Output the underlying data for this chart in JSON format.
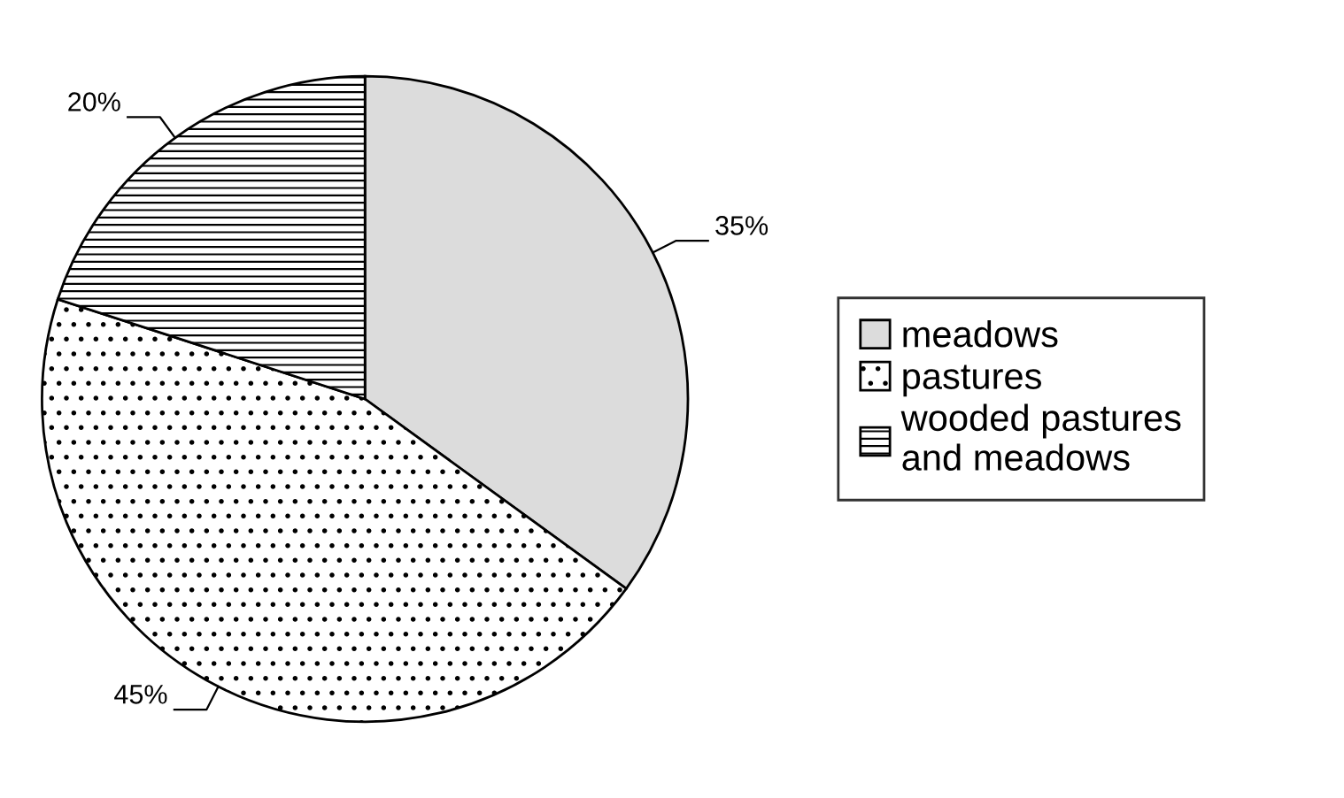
{
  "chart_data": {
    "type": "pie",
    "categories": [
      "meadows",
      "pastures",
      "wooded pastures\nand meadows"
    ],
    "values": [
      35,
      45,
      20
    ],
    "colors": [
      "#dcdcdc",
      "#ffffff",
      "#ffffff"
    ],
    "value_labels": [
      "35%",
      "45%",
      "20%"
    ],
    "legend": "right"
  }
}
